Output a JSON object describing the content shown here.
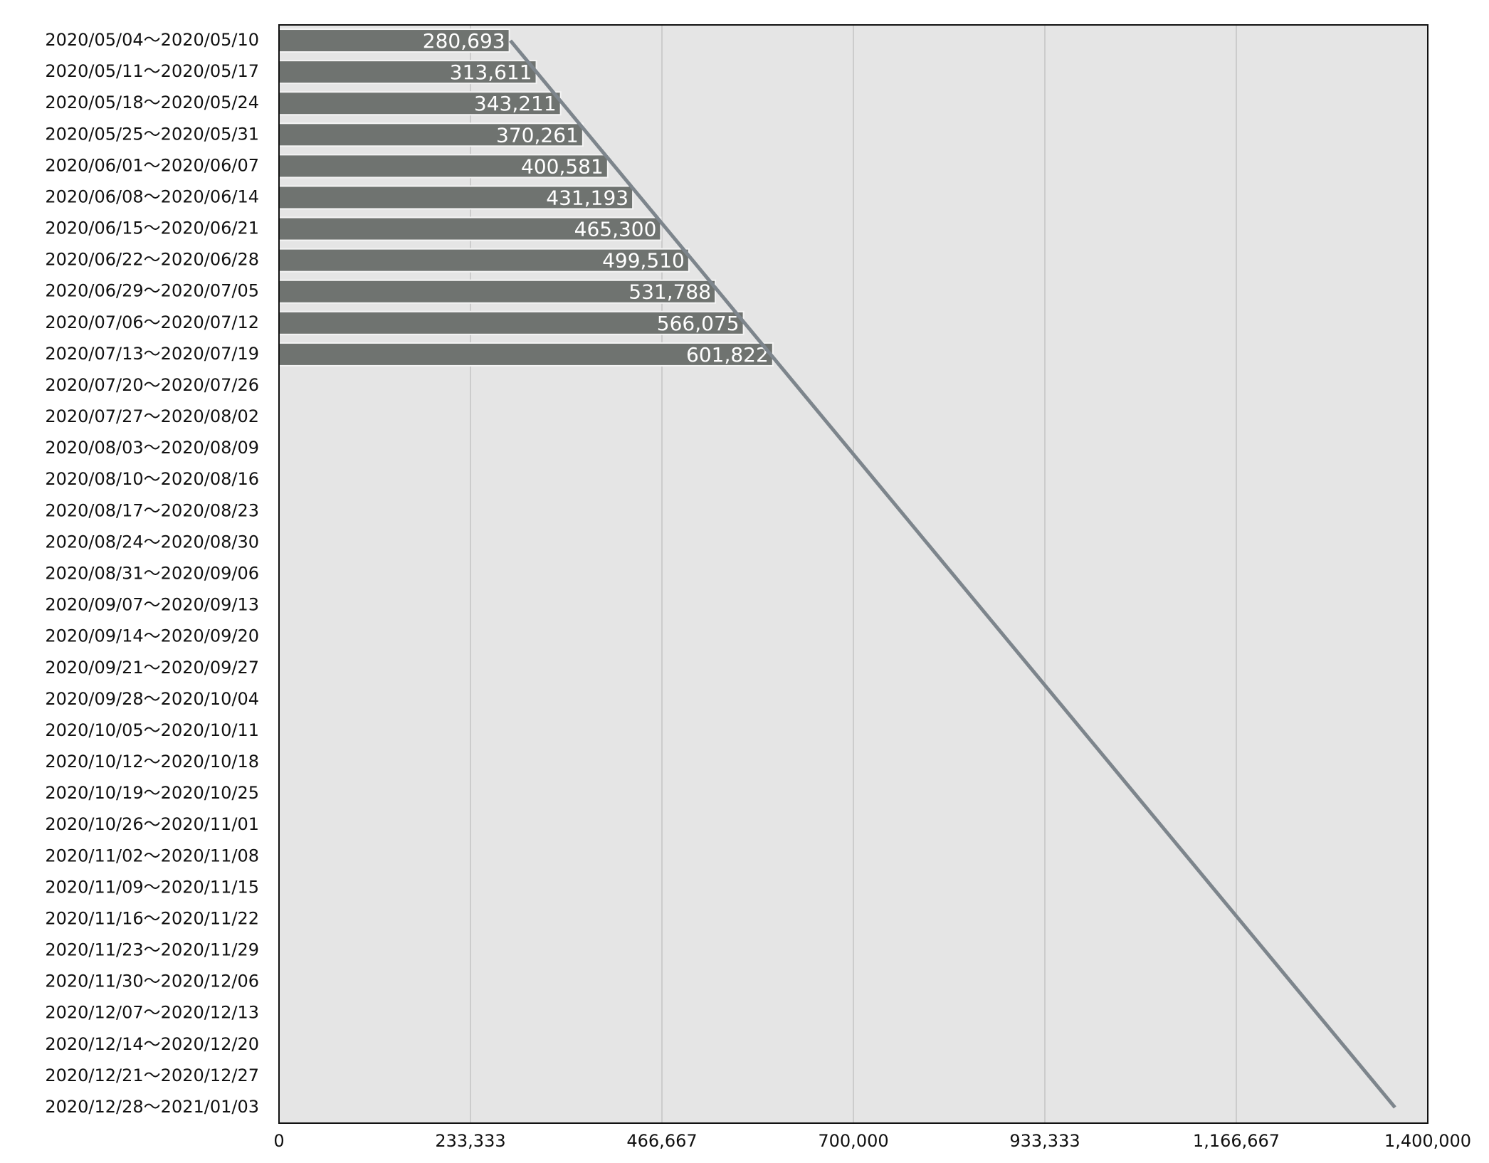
{
  "chart_data": {
    "type": "bar",
    "orientation": "horizontal",
    "categories": [
      "2020/05/04～2020/05/10",
      "2020/05/11～2020/05/17",
      "2020/05/18～2020/05/24",
      "2020/05/25～2020/05/31",
      "2020/06/01～2020/06/07",
      "2020/06/08～2020/06/14",
      "2020/06/15～2020/06/21",
      "2020/06/22～2020/06/28",
      "2020/06/29～2020/07/05",
      "2020/07/06～2020/07/12",
      "2020/07/13～2020/07/19",
      "2020/07/20～2020/07/26",
      "2020/07/27～2020/08/02",
      "2020/08/03～2020/08/09",
      "2020/08/10～2020/08/16",
      "2020/08/17～2020/08/23",
      "2020/08/24～2020/08/30",
      "2020/08/31～2020/09/06",
      "2020/09/07～2020/09/13",
      "2020/09/14～2020/09/20",
      "2020/09/21～2020/09/27",
      "2020/09/28～2020/10/04",
      "2020/10/05～2020/10/11",
      "2020/10/12～2020/10/18",
      "2020/10/19～2020/10/25",
      "2020/10/26～2020/11/01",
      "2020/11/02～2020/11/08",
      "2020/11/09～2020/11/15",
      "2020/11/16～2020/11/22",
      "2020/11/23～2020/11/29",
      "2020/11/30～2020/12/06",
      "2020/12/07～2020/12/13",
      "2020/12/14～2020/12/20",
      "2020/12/21～2020/12/27",
      "2020/12/28～2021/01/03"
    ],
    "values": [
      280693,
      313611,
      343211,
      370261,
      400581,
      431193,
      465300,
      499510,
      531788,
      566075,
      601822,
      null,
      null,
      null,
      null,
      null,
      null,
      null,
      null,
      null,
      null,
      null,
      null,
      null,
      null,
      null,
      null,
      null,
      null,
      null,
      null,
      null,
      null,
      null,
      null
    ],
    "value_labels": [
      "280,693",
      "313,611",
      "343,211",
      "370,261",
      "400,581",
      "431,193",
      "465,300",
      "499,510",
      "531,788",
      "566,075",
      "601,822",
      null,
      null,
      null,
      null,
      null,
      null,
      null,
      null,
      null,
      null,
      null,
      null,
      null,
      null,
      null,
      null,
      null,
      null,
      null,
      null,
      null,
      null,
      null,
      null
    ],
    "color": "#6f7370",
    "trend": {
      "color": "#7d858c",
      "values": [
        282000,
        313706,
        345412,
        377118,
        408824,
        440530,
        472236,
        503942,
        535648,
        567354,
        599060,
        630766,
        662472,
        694178,
        725884,
        757590,
        789296,
        821002,
        852708,
        884414,
        916120,
        947826,
        979532,
        1011238,
        1042944,
        1074650,
        1106356,
        1138062,
        1169768,
        1201474,
        1233180,
        1264886,
        1296592,
        1328298,
        1360004
      ]
    },
    "xlim": [
      0,
      1400000
    ],
    "xticks": [
      0,
      {
        "value": 233333,
        "label": "233,333"
      },
      {
        "value": 466667,
        "label": "466,667"
      },
      {
        "value": 700000,
        "label": "700,000"
      },
      {
        "value": 933333,
        "label": "933,333"
      },
      {
        "value": 1166667,
        "label": "1,166,667"
      },
      {
        "value": 1400000,
        "label": "1,400,000"
      }
    ],
    "grid": true
  }
}
